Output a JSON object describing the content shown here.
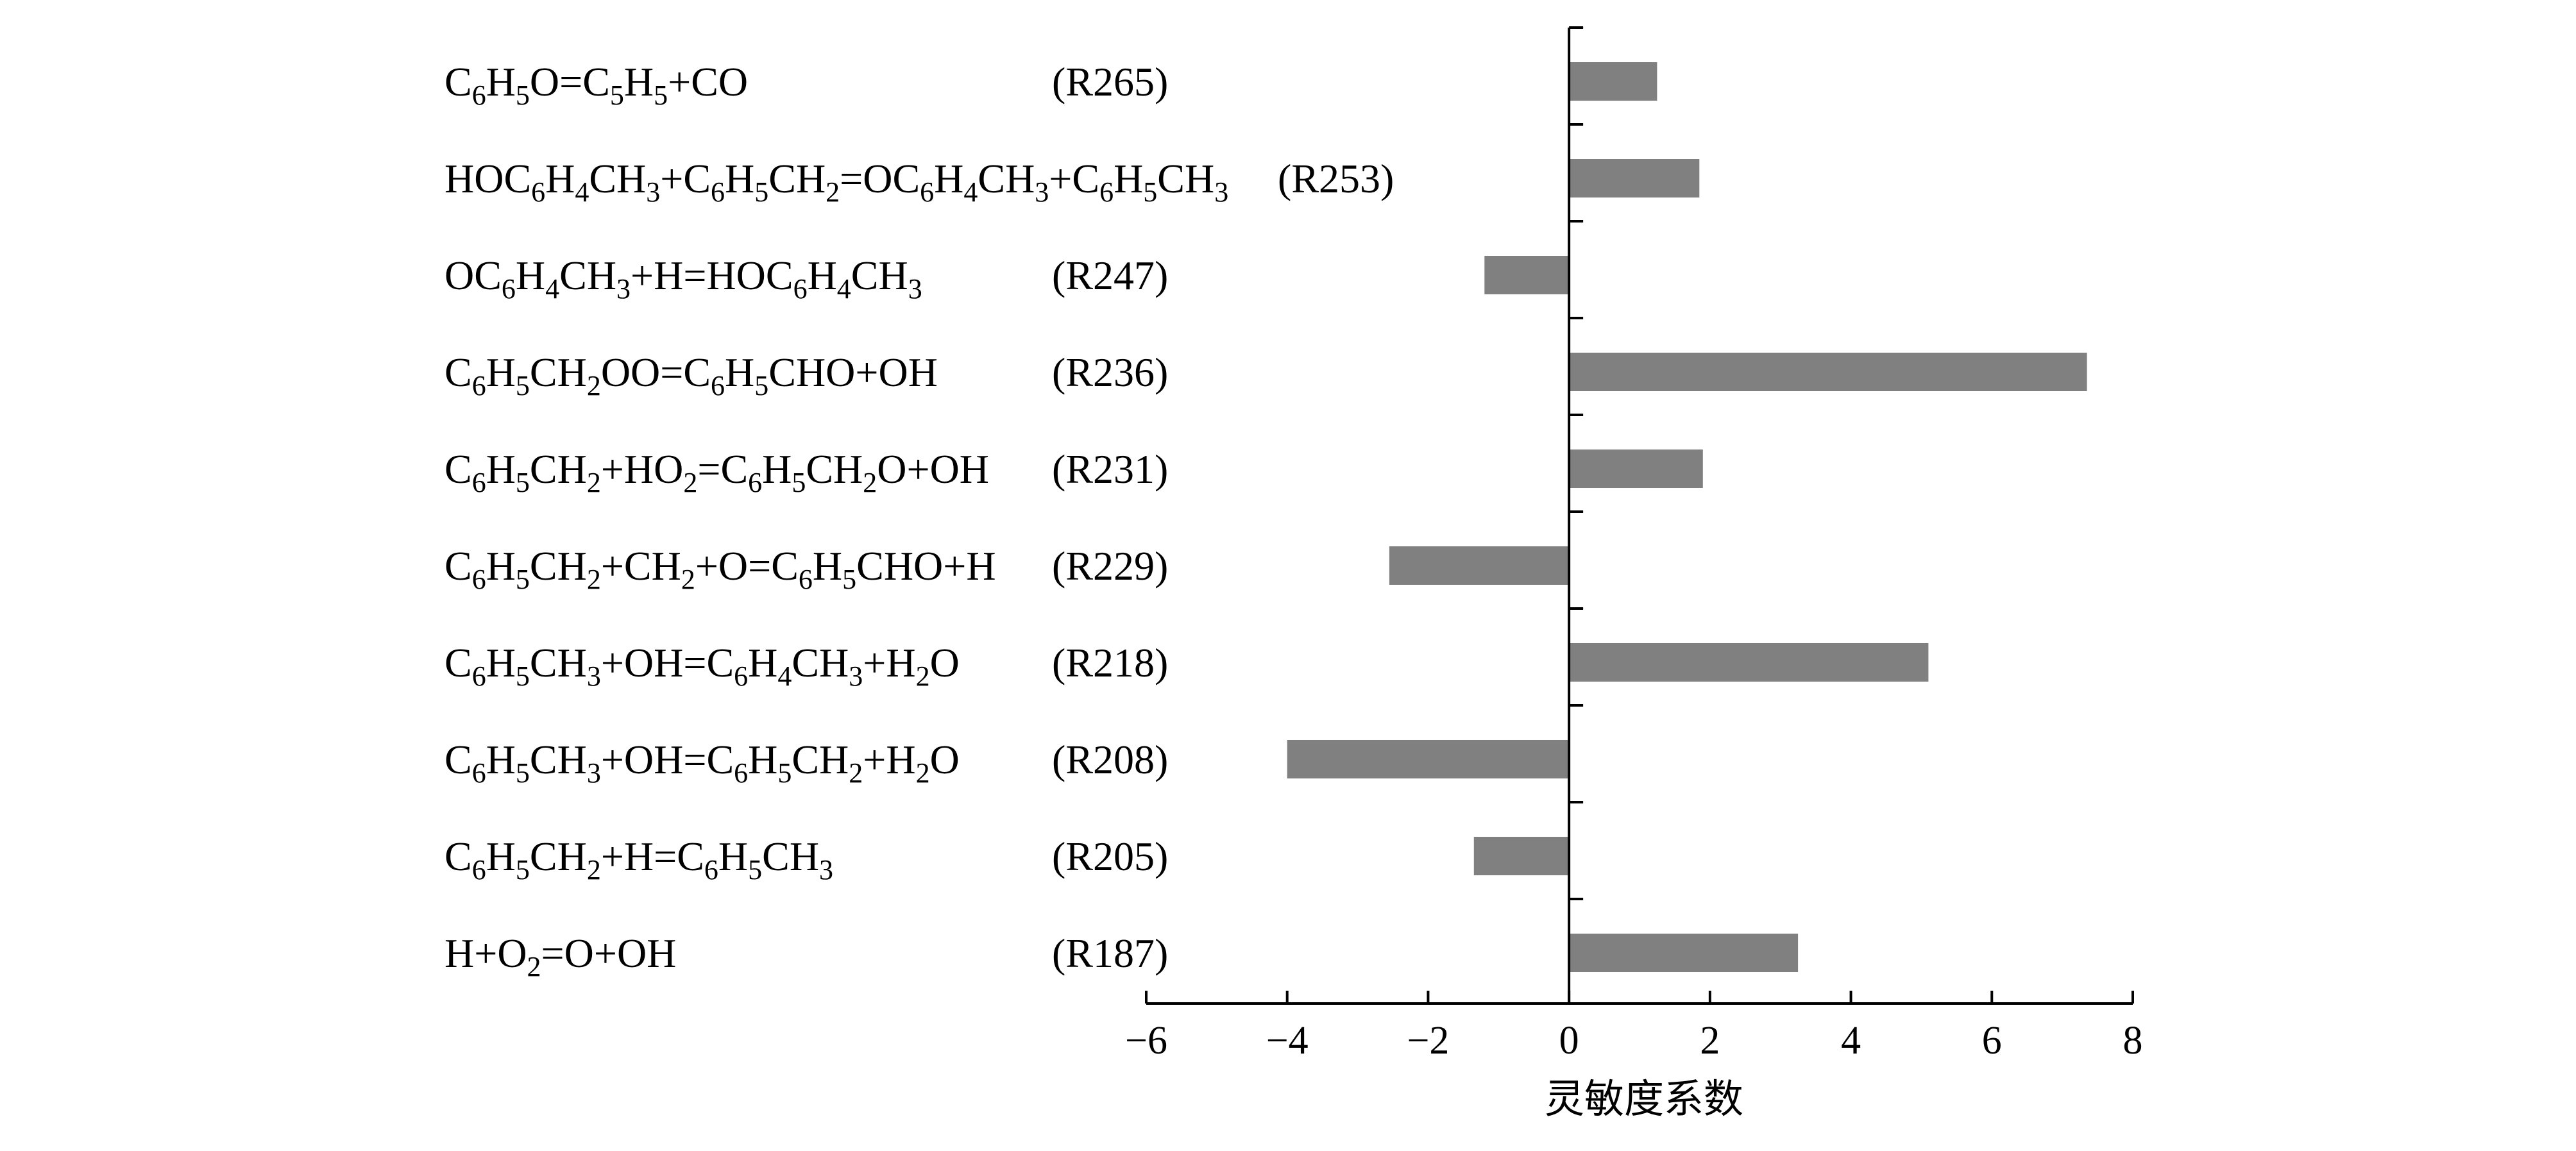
{
  "chart_data": {
    "type": "bar",
    "orientation": "horizontal",
    "xlabel": "灵敏度系数",
    "xlim": [
      -6,
      8
    ],
    "xticks": [
      "−6",
      "−4",
      "−2",
      "0",
      "2",
      "4",
      "6",
      "8"
    ],
    "grid": false,
    "bar_color": "#808080",
    "bars": [
      {
        "reaction": "C6H5O=C5H5+CO",
        "reaction_parts": [
          [
            "C"
          ],
          [
            "6",
            "sub"
          ],
          [
            "H"
          ],
          [
            "5",
            "sub"
          ],
          [
            "O=C"
          ],
          [
            "5",
            "sub"
          ],
          [
            "H"
          ],
          [
            "5",
            "sub"
          ],
          [
            "+CO"
          ]
        ],
        "id": "(R265)",
        "value": 1.25
      },
      {
        "reaction": "HOC6H4CH3+C6H5CH2=OC6H4CH3+C6H5CH3",
        "reaction_parts": [
          [
            "HOC"
          ],
          [
            "6",
            "sub"
          ],
          [
            "H"
          ],
          [
            "4",
            "sub"
          ],
          [
            "CH"
          ],
          [
            "3",
            "sub"
          ],
          [
            "+C"
          ],
          [
            "6",
            "sub"
          ],
          [
            "H"
          ],
          [
            "5",
            "sub"
          ],
          [
            "CH"
          ],
          [
            "2",
            "sub"
          ],
          [
            "=OC"
          ],
          [
            "6",
            "sub"
          ],
          [
            "H"
          ],
          [
            "4",
            "sub"
          ],
          [
            "CH"
          ],
          [
            "3",
            "sub"
          ],
          [
            "+C"
          ],
          [
            "6",
            "sub"
          ],
          [
            "H"
          ],
          [
            "5",
            "sub"
          ],
          [
            "CH"
          ],
          [
            "3",
            "sub"
          ]
        ],
        "id": "(R253)",
        "value": 1.85
      },
      {
        "reaction": "OC6H4CH3+H=HOC6H4CH3",
        "reaction_parts": [
          [
            "OC"
          ],
          [
            "6",
            "sub"
          ],
          [
            "H"
          ],
          [
            "4",
            "sub"
          ],
          [
            "CH"
          ],
          [
            "3",
            "sub"
          ],
          [
            "+H=HOC"
          ],
          [
            "6",
            "sub"
          ],
          [
            "H"
          ],
          [
            "4",
            "sub"
          ],
          [
            "CH"
          ],
          [
            "3",
            "sub"
          ]
        ],
        "id": "(R247)",
        "value": -1.2
      },
      {
        "reaction": "C6H5CH2OO=C6H5CHO+OH",
        "reaction_parts": [
          [
            "C"
          ],
          [
            "6",
            "sub"
          ],
          [
            "H"
          ],
          [
            "5",
            "sub"
          ],
          [
            "CH"
          ],
          [
            "2",
            "sub"
          ],
          [
            "OO=C"
          ],
          [
            "6",
            "sub"
          ],
          [
            "H"
          ],
          [
            "5",
            "sub"
          ],
          [
            "CHO+OH"
          ]
        ],
        "id": "(R236)",
        "value": 7.35
      },
      {
        "reaction": "C6H5CH2+HO2=C6H5CH2O+OH",
        "reaction_parts": [
          [
            "C"
          ],
          [
            "6",
            "sub"
          ],
          [
            "H"
          ],
          [
            "5",
            "sub"
          ],
          [
            "CH"
          ],
          [
            "2",
            "sub"
          ],
          [
            "+HO"
          ],
          [
            "2",
            "sub"
          ],
          [
            "=C"
          ],
          [
            "6",
            "sub"
          ],
          [
            "H"
          ],
          [
            "5",
            "sub"
          ],
          [
            "CH"
          ],
          [
            "2",
            "sub"
          ],
          [
            "O+OH"
          ]
        ],
        "id": "(R231)",
        "value": 1.9
      },
      {
        "reaction": "C6H5CH2+CH2+O=C6H5CHO+H",
        "reaction_parts": [
          [
            "C"
          ],
          [
            "6",
            "sub"
          ],
          [
            "H"
          ],
          [
            "5",
            "sub"
          ],
          [
            "CH"
          ],
          [
            "2",
            "sub"
          ],
          [
            "+CH"
          ],
          [
            "2",
            "sub"
          ],
          [
            "+O=C"
          ],
          [
            "6",
            "sub"
          ],
          [
            "H"
          ],
          [
            "5",
            "sub"
          ],
          [
            "CHO+H"
          ]
        ],
        "id": "(R229)",
        "value": -2.55
      },
      {
        "reaction": "C6H5CH3+OH=C6H4CH3+H2O",
        "reaction_parts": [
          [
            "C"
          ],
          [
            "6",
            "sub"
          ],
          [
            "H"
          ],
          [
            "5",
            "sub"
          ],
          [
            "CH"
          ],
          [
            "3",
            "sub"
          ],
          [
            "+OH=C"
          ],
          [
            "6",
            "sub"
          ],
          [
            "H"
          ],
          [
            "4",
            "sub"
          ],
          [
            "CH"
          ],
          [
            "3",
            "sub"
          ],
          [
            "+H"
          ],
          [
            "2",
            "sub"
          ],
          [
            "O"
          ]
        ],
        "id": "(R218)",
        "value": 5.1
      },
      {
        "reaction": "C6H5CH3+OH=C6H5CH2+H2O",
        "reaction_parts": [
          [
            "C"
          ],
          [
            "6",
            "sub"
          ],
          [
            "H"
          ],
          [
            "5",
            "sub"
          ],
          [
            "CH"
          ],
          [
            "3",
            "sub"
          ],
          [
            "+OH=C"
          ],
          [
            "6",
            "sub"
          ],
          [
            "H"
          ],
          [
            "5",
            "sub"
          ],
          [
            "CH"
          ],
          [
            "2",
            "sub"
          ],
          [
            "+H"
          ],
          [
            "2",
            "sub"
          ],
          [
            "O"
          ]
        ],
        "id": "(R208)",
        "value": -4.0
      },
      {
        "reaction": "C6H5CH2+H=C6H5CH3",
        "reaction_parts": [
          [
            "C"
          ],
          [
            "6",
            "sub"
          ],
          [
            "H"
          ],
          [
            "5",
            "sub"
          ],
          [
            "CH"
          ],
          [
            "2",
            "sub"
          ],
          [
            "+H=C"
          ],
          [
            "6",
            "sub"
          ],
          [
            "H"
          ],
          [
            "5",
            "sub"
          ],
          [
            "CH"
          ],
          [
            "3",
            "sub"
          ]
        ],
        "id": "(R205)",
        "value": -1.35
      },
      {
        "reaction": "H+O2=O+OH",
        "reaction_parts": [
          [
            "H+O"
          ],
          [
            "2",
            "sub"
          ],
          [
            "=O+OH"
          ]
        ],
        "id": "(R187)",
        "value": 3.25
      }
    ]
  }
}
